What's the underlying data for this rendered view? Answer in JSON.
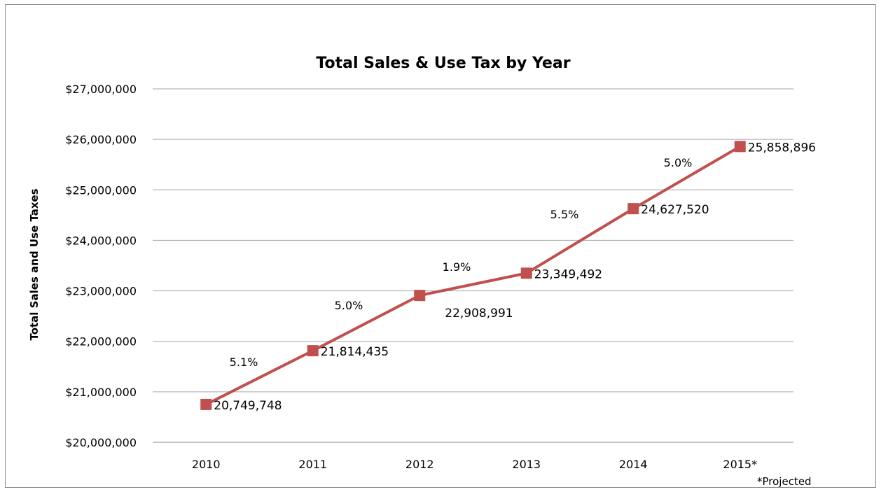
{
  "chart_data": {
    "type": "line",
    "title": "Total Sales & Use Tax by Year",
    "ylabel": "Total Sales and Use Taxes",
    "xlabel": "",
    "categories": [
      "2010",
      "2011",
      "2012",
      "2013",
      "2014",
      "2015*"
    ],
    "ylim": [
      20000000,
      27000000
    ],
    "yticks": [
      {
        "value": 20000000,
        "label": "$20,000,000"
      },
      {
        "value": 21000000,
        "label": "$21,000,000"
      },
      {
        "value": 22000000,
        "label": "$22,000,000"
      },
      {
        "value": 23000000,
        "label": "$23,000,000"
      },
      {
        "value": 24000000,
        "label": "$24,000,000"
      },
      {
        "value": 25000000,
        "label": "$25,000,000"
      },
      {
        "value": 26000000,
        "label": "$26,000,000"
      },
      {
        "value": 27000000,
        "label": "$27,000,000"
      }
    ],
    "grid": true,
    "series": [
      {
        "values": [
          20749748,
          21814435,
          22908991,
          23349492,
          24627520,
          25858896
        ],
        "labels": [
          "20,749,748",
          "21,814,435",
          "22,908,991",
          "23,349,492",
          "24,627,520",
          "25,858,896"
        ],
        "color": "#c0504d",
        "marker": "square"
      }
    ],
    "growth_labels": [
      "5.1%",
      "5.0%",
      "1.9%",
      "5.5%",
      "5.0%"
    ],
    "footnote": "*Projected"
  }
}
